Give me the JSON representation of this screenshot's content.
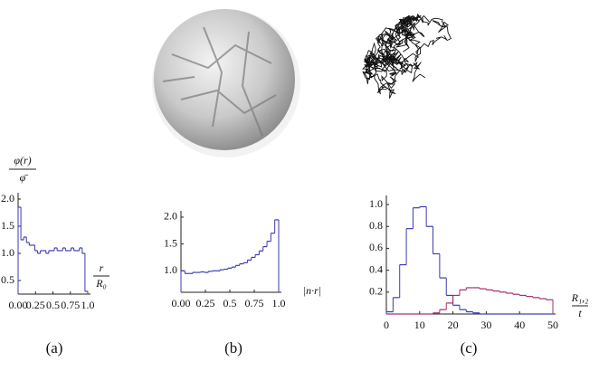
{
  "chart_data": [
    {
      "type": "histogram",
      "caption": "(a)",
      "ylabel": [
        "φ(r)",
        "φ̄"
      ],
      "xlabel": [
        "r",
        "R₀"
      ],
      "bins": [
        0,
        0.04,
        0.08,
        0.12,
        0.16,
        0.2,
        0.24,
        0.28,
        0.32,
        0.36,
        0.4,
        0.44,
        0.48,
        0.52,
        0.56,
        0.6,
        0.64,
        0.68,
        0.72,
        0.76,
        0.8,
        0.84,
        0.88,
        0.92,
        0.96,
        1.0
      ],
      "values": [
        1.85,
        1.25,
        1.3,
        1.2,
        1.15,
        1.15,
        1.05,
        1.0,
        1.05,
        1.05,
        1.0,
        1.05,
        1.05,
        1.1,
        1.05,
        1.05,
        1.1,
        1.05,
        1.05,
        1.1,
        1.05,
        1.05,
        1.1,
        1.0,
        0.3
      ],
      "color": "#3b3bb0",
      "xlim": [
        0,
        1
      ],
      "ylim": [
        0.25,
        2.05
      ],
      "xticks": [
        {
          "value": 0,
          "label": "0.00"
        },
        0.25,
        0.5,
        0.75,
        {
          "value": 1,
          "label": "1.0"
        }
      ],
      "yticks": [
        0.5,
        {
          "value": 1,
          "label": "1.0"
        },
        1.5,
        {
          "value": 2,
          "label": "2.0"
        }
      ]
    },
    {
      "type": "histogram",
      "caption": "(b)",
      "xlabel": [
        "|n·r|"
      ],
      "bins": [
        0,
        0.04,
        0.08,
        0.12,
        0.16,
        0.2,
        0.24,
        0.28,
        0.32,
        0.36,
        0.4,
        0.44,
        0.48,
        0.52,
        0.56,
        0.6,
        0.64,
        0.68,
        0.72,
        0.76,
        0.8,
        0.84,
        0.88,
        0.92,
        0.96,
        1.0
      ],
      "values": [
        1.0,
        0.95,
        0.95,
        0.97,
        0.97,
        0.98,
        0.97,
        0.99,
        1.0,
        1.0,
        1.02,
        1.03,
        1.05,
        1.07,
        1.1,
        1.13,
        1.15,
        1.2,
        1.25,
        1.3,
        1.37,
        1.45,
        1.55,
        1.7,
        1.95
      ],
      "color": "#3b3bb0",
      "xlim": [
        0,
        1
      ],
      "ylim": [
        0.6,
        2.05
      ],
      "xticks": [
        {
          "value": 0,
          "label": "0.00"
        },
        0.25,
        0.5,
        0.75,
        {
          "value": 1,
          "label": "1.0"
        }
      ],
      "yticks": [
        {
          "value": 1,
          "label": "1.0"
        },
        1.5,
        {
          "value": 2,
          "label": "2.0"
        }
      ]
    },
    {
      "type": "histogram",
      "caption": "(c)",
      "xlabel": [
        "R₁,₂",
        "t"
      ],
      "bins": [
        0,
        2,
        4,
        6,
        8,
        10,
        12,
        14,
        16,
        18,
        20,
        22,
        24,
        26,
        28,
        30,
        32,
        34,
        36,
        38,
        40,
        42,
        44,
        46,
        48,
        50
      ],
      "series": [
        {
          "color": "#3b3bb0",
          "values": [
            0.02,
            0.15,
            0.45,
            0.78,
            0.97,
            0.98,
            0.8,
            0.55,
            0.33,
            0.17,
            0.08,
            0.04,
            0.02,
            0.01,
            0,
            0,
            0,
            0,
            0,
            0,
            0,
            0,
            0,
            0,
            0
          ]
        },
        {
          "color": "#a0306a",
          "values": [
            0,
            0,
            0,
            0,
            0,
            0,
            0,
            0.01,
            0.04,
            0.1,
            0.17,
            0.22,
            0.24,
            0.24,
            0.23,
            0.22,
            0.21,
            0.2,
            0.19,
            0.18,
            0.17,
            0.16,
            0.15,
            0.14,
            0.13
          ]
        }
      ],
      "xlim": [
        0,
        50
      ],
      "ylim": [
        0,
        1.05
      ],
      "xticks": [
        0,
        10,
        20,
        30,
        40,
        50
      ],
      "yticks": [
        0.2,
        0.4,
        0.6,
        0.8,
        {
          "value": 1,
          "label": "1.0"
        }
      ]
    }
  ]
}
